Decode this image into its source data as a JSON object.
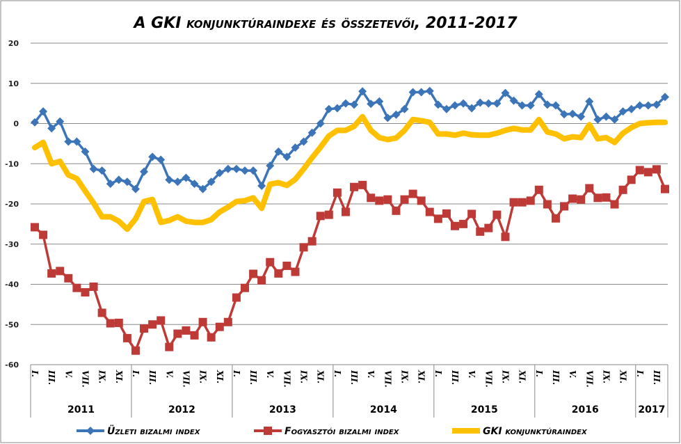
{
  "chart_data": {
    "type": "line",
    "title": "A GKI konjunktúraindexe és összetevői, 2011-2017",
    "ylim": [
      -60,
      20
    ],
    "yticks": [
      "20",
      "10",
      "0",
      "-10",
      "-20",
      "-30",
      "-40",
      "-50",
      "-60"
    ],
    "ytick_values": [
      20,
      10,
      0,
      -10,
      -20,
      -30,
      -40,
      -50,
      -60
    ],
    "grid": true,
    "legend_position": "bottom",
    "years": [
      {
        "label": "2011",
        "months": 12,
        "ticks": [
          "I.",
          "III.",
          "V.",
          "VII.",
          "IX.",
          "XI."
        ]
      },
      {
        "label": "2012",
        "months": 12,
        "ticks": [
          "I.",
          "III.",
          "V.",
          "VII.",
          "IX.",
          "XI."
        ]
      },
      {
        "label": "2013",
        "months": 12,
        "ticks": [
          "I.",
          "III.",
          "V.",
          "VII.",
          "IX.",
          "XI."
        ]
      },
      {
        "label": "2014",
        "months": 12,
        "ticks": [
          "I.",
          "III.",
          "V.",
          "VII.",
          "IX.",
          "XI."
        ]
      },
      {
        "label": "2015",
        "months": 12,
        "ticks": [
          "I.",
          "III.",
          "V.",
          "VII.",
          "IX.",
          "XI."
        ]
      },
      {
        "label": "2016",
        "months": 12,
        "ticks": [
          "I.",
          "III.",
          "V.",
          "VII.",
          "IX.",
          "XI."
        ]
      },
      {
        "label": "2017",
        "months": 4,
        "ticks": [
          "I.",
          "III."
        ]
      }
    ],
    "series": [
      {
        "name": "Üzleti bizalmi index",
        "color": "#3c74b8",
        "marker": "diamond",
        "values": [
          0.3,
          3,
          -1.2,
          0.5,
          -4.5,
          -4.5,
          -7,
          -11.3,
          -11.7,
          -15,
          -14,
          -14.5,
          -16.3,
          -12,
          -8.3,
          -9,
          -14,
          -14.5,
          -13.5,
          -15,
          -16.3,
          -14.5,
          -12.3,
          -11.3,
          -11.3,
          -11.7,
          -11.7,
          -15.5,
          -10.5,
          -7,
          -8.3,
          -6,
          -4.5,
          -2.3,
          0,
          3.6,
          3.8,
          5,
          4.7,
          8,
          4.9,
          5.5,
          1.4,
          2.2,
          3.6,
          7.8,
          7.8,
          8.1,
          4.7,
          3.6,
          4.5,
          5,
          3.8,
          5.2,
          5,
          5,
          7.6,
          5.7,
          4.5,
          4.5,
          7.3,
          4.7,
          4.5,
          2.3,
          2.4,
          1.7,
          5.5,
          1,
          1.7,
          1,
          3,
          3.6,
          4.5,
          4.5,
          4.7,
          6.6
        ]
      },
      {
        "name": "Fogyasztói bizalmi index",
        "color": "#be3a36",
        "marker": "square",
        "values": [
          -25.8,
          -27.7,
          -37.3,
          -36.7,
          -38.5,
          -40.9,
          -42,
          -40.6,
          -47.1,
          -49.7,
          -49.6,
          -53.4,
          -56.5,
          -51,
          -50,
          -49,
          -55.6,
          -52.3,
          -51.5,
          -52.7,
          -49.4,
          -53.2,
          -50.6,
          -49.4,
          -43.3,
          -40.9,
          -37.4,
          -39,
          -34.5,
          -37.3,
          -35.4,
          -36.9,
          -30.8,
          -29.3,
          -23,
          -22.7,
          -17.2,
          -22,
          -15.8,
          -15.3,
          -18.5,
          -19.2,
          -18.9,
          -21.7,
          -18.9,
          -17.5,
          -19.2,
          -22,
          -23.7,
          -22.4,
          -25.5,
          -25,
          -22.5,
          -26.9,
          -26,
          -22.7,
          -28.2,
          -19.6,
          -19.6,
          -19.2,
          -16.5,
          -20.1,
          -23.6,
          -20.6,
          -18.7,
          -18.9,
          -16.1,
          -18.5,
          -18.4,
          -20.1,
          -16.5,
          -14,
          -11.6,
          -12.1,
          -11.4,
          -16.3
        ]
      },
      {
        "name": "GKI konjunktúraindex",
        "color": "#ffc000",
        "marker": "none",
        "values": [
          -6,
          -4.7,
          -10,
          -9.4,
          -12.8,
          -13.7,
          -16.8,
          -19.8,
          -23.2,
          -23.2,
          -24.3,
          -26.3,
          -23.7,
          -19.4,
          -18.9,
          -24.6,
          -24.1,
          -23.2,
          -24.3,
          -24.6,
          -24.6,
          -23.9,
          -22,
          -20.8,
          -19.4,
          -19.2,
          -18.5,
          -21.1,
          -15.1,
          -14.7,
          -15.4,
          -13.9,
          -11.3,
          -8.5,
          -5.9,
          -3.1,
          -1.7,
          -1.7,
          -0.7,
          1.7,
          -1.7,
          -3.5,
          -4,
          -3.6,
          -1.7,
          1,
          0.7,
          0.3,
          -2.6,
          -2.6,
          -2.9,
          -2.4,
          -2.8,
          -2.9,
          -2.9,
          -2.4,
          -1.7,
          -1.2,
          -1.6,
          -1.6,
          1,
          -2.1,
          -2.6,
          -3.8,
          -3.3,
          -3.5,
          -0.3,
          -3.8,
          -3.5,
          -4.7,
          -2.4,
          -1,
          0,
          0.2,
          0.3,
          0.3
        ]
      }
    ]
  }
}
